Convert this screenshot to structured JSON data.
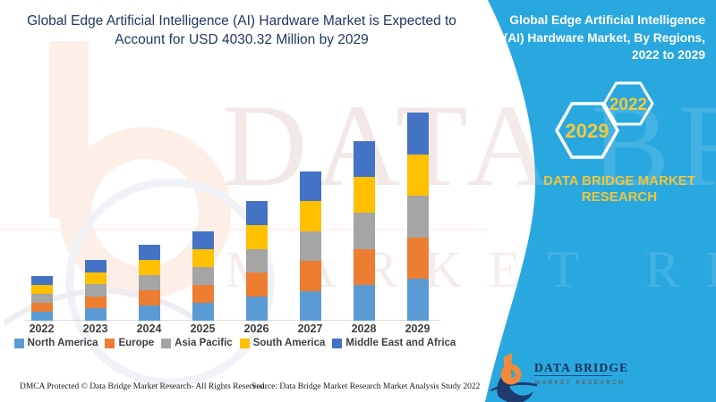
{
  "header": {
    "title_line1": "Global Edge Artificial Intelligence (AI) Hardware Market is Expected to",
    "title_line2": "Account for USD 4030.32 Million by 2029"
  },
  "right_panel": {
    "panel_color": "#29A8E0",
    "accent_yellow": "#F0C83E",
    "title_lines": [
      "Global Edge Artificial Intelligence",
      "(AI) Hardware Market, By Regions,",
      "2022 to 2029"
    ],
    "hex_back_year": "2029",
    "hex_front_year": "2022",
    "brand_line1": "DATA BRIDGE MARKET",
    "brand_line2": "RESEARCH",
    "logo_title": "DATA BRIDGE",
    "logo_subtitle": "MARKET RESEARCH"
  },
  "watermark": {
    "line1": "DATA BRIDGE",
    "line2": "MARKET RESEARCH",
    "logo_icon": "data-bridge-b-watermark"
  },
  "footer": {
    "dmca": "DMCA Protected © Data Bridge Market Research- All Rights Reserved.",
    "source": "Source: Data Bridge Market Research Market Analysis Study 2022"
  },
  "chart_data": {
    "type": "bar",
    "stacked": true,
    "title": "Global Edge Artificial Intelligence (AI) Hardware Market is Expected to Account for USD 4030.32 Million by 2029",
    "unit": "USD Million",
    "categories": [
      "2022",
      "2023",
      "2024",
      "2025",
      "2026",
      "2027",
      "2028",
      "2029"
    ],
    "series": [
      {
        "name": "North America",
        "color": "#5B9BD5",
        "values": [
          174,
          236,
          294,
          346,
          464,
          580,
          696,
          806.06
        ]
      },
      {
        "name": "Europe",
        "color": "#ED7D31",
        "values": [
          174,
          236,
          294,
          346,
          464,
          580,
          696,
          806.06
        ]
      },
      {
        "name": "Asia Pacific",
        "color": "#A5A5A5",
        "values": [
          174,
          236,
          294,
          346,
          464,
          580,
          696,
          806.06
        ]
      },
      {
        "name": "South America",
        "color": "#FFC000",
        "values": [
          174,
          236,
          294,
          346,
          464,
          580,
          696,
          806.06
        ]
      },
      {
        "name": "Middle East and Africa",
        "color": "#4472C4",
        "values": [
          174,
          236,
          294,
          346,
          464,
          580,
          696,
          806.06
        ]
      }
    ],
    "totals_estimated": [
      870,
      1180,
      1470,
      1730,
      2320,
      2900,
      3480,
      4030.32
    ],
    "ylim": [
      0,
      4200
    ],
    "grid": false,
    "y_axis_shown": false,
    "legend_position": "bottom",
    "note": "Only the 2029 total of USD 4030.32 Million is stated in the image; regional splits are estimated from segment heights."
  }
}
